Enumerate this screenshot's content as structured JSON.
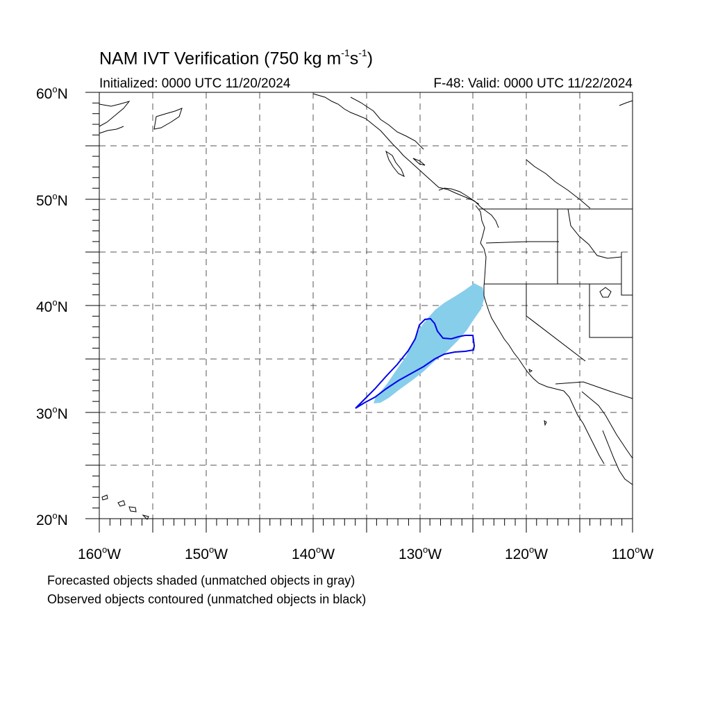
{
  "title": {
    "text": "NAM IVT Verification (750 kg m",
    "unit_exp1": "-1",
    "unit_mid": "s",
    "unit_exp2": "-1",
    "unit_close": ")"
  },
  "subtitle_left": "Initialized: 0000 UTC 11/20/2024",
  "subtitle_right": "F-48: Valid: 0000 UTC 11/22/2024",
  "lat_labels": [
    {
      "num": "60",
      "hemi": "N"
    },
    {
      "num": "50",
      "hemi": "N"
    },
    {
      "num": "40",
      "hemi": "N"
    },
    {
      "num": "30",
      "hemi": "N"
    },
    {
      "num": "20",
      "hemi": "N"
    }
  ],
  "lon_labels": [
    {
      "num": "160",
      "hemi": "W"
    },
    {
      "num": "150",
      "hemi": "W"
    },
    {
      "num": "140",
      "hemi": "W"
    },
    {
      "num": "130",
      "hemi": "W"
    },
    {
      "num": "120",
      "hemi": "W"
    },
    {
      "num": "110",
      "hemi": "W"
    }
  ],
  "degree_symbol": "o",
  "footnote_1": "Forecasted objects shaded (unmatched objects in gray)",
  "footnote_2": "Observed objects contoured (unmatched objects in black)",
  "colors": {
    "forecast_fill": "#87ceeb",
    "observed_contour": "#0000ee",
    "grid": "#555555",
    "coast": "#000000"
  }
}
